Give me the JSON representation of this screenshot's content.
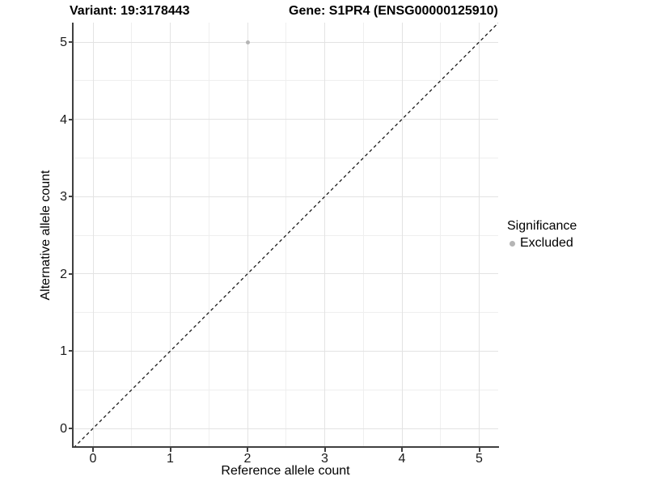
{
  "titles": {
    "variant": "Variant: 19:3178443",
    "gene": "Gene: S1PR4 (ENSG00000125910)"
  },
  "chart_data": {
    "type": "scatter",
    "title_left": "Variant: 19:3178443",
    "title_right": "Gene: S1PR4 (ENSG00000125910)",
    "xlabel": "Reference allele count",
    "ylabel": "Alternative allele count",
    "x_ticks": [
      0,
      1,
      2,
      3,
      4,
      5
    ],
    "y_ticks": [
      0,
      1,
      2,
      3,
      4,
      5
    ],
    "xlim": [
      -0.25,
      5.25
    ],
    "ylim": [
      -0.25,
      5.25
    ],
    "grid": "major and minor gridlines, white panel background",
    "series": [
      {
        "name": "Excluded",
        "color": "#b5b5b5",
        "points": [
          {
            "x": 2,
            "y": 5
          }
        ]
      }
    ],
    "reference_line": {
      "type": "identity y=x",
      "style": "dashed",
      "color": "#1a1a1a",
      "from": [
        -0.25,
        -0.25
      ],
      "to": [
        5.25,
        5.25
      ]
    },
    "legend_position": "right"
  },
  "legend": {
    "title": "Significance",
    "items": [
      {
        "label": "Excluded",
        "color": "#b5b5b5",
        "marker": "circle"
      }
    ]
  },
  "colors": {
    "background": "#ffffff",
    "grid_major": "#e3e3e3",
    "grid_minor": "#efefef",
    "axis_line": "#404040",
    "text": "#000000",
    "excluded_point": "#b5b5b5"
  }
}
